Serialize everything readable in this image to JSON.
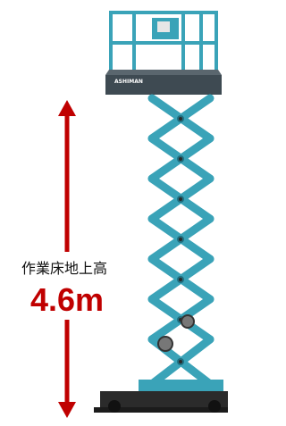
{
  "annotation": {
    "label": "作業床地上高",
    "value": "4.6m"
  },
  "machine": {
    "brand": "ASHIMAN"
  }
}
